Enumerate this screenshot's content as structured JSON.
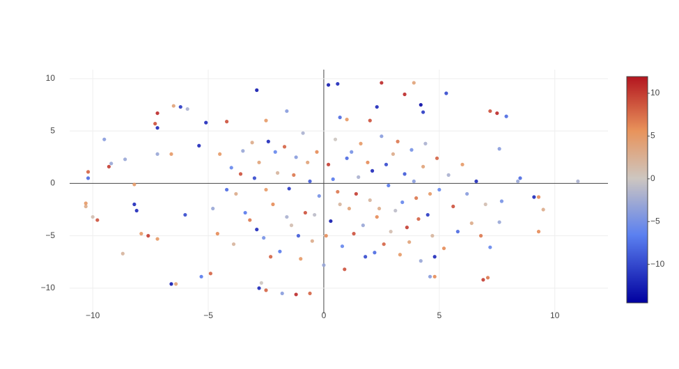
{
  "chart_data": {
    "type": "scatter",
    "x": [
      -10.2,
      -10.2,
      -10.3,
      -10.3,
      -10.0,
      -9.8,
      -9.5,
      -9.2,
      -9.3,
      -8.6,
      -8.2,
      -8.2,
      -8.1,
      -8.7,
      -7.9,
      -7.6,
      -7.2,
      -7.2,
      -7.2,
      -7.3,
      -7.2,
      -6.6,
      -6.5,
      -6.2,
      -5.9,
      -6.6,
      -6.4,
      -5.3,
      -4.9,
      -6.0,
      -5.4,
      -5.1,
      -4.2,
      -2.9,
      -2.5,
      -2.8,
      -2.7,
      -2.5,
      -1.8,
      -1.2,
      -0.6,
      -1.6,
      0.2,
      0.6,
      0.7,
      1.0,
      2.5,
      2.3,
      2.0,
      3.5,
      3.9,
      4.2,
      4.3,
      5.3,
      7.2,
      7.5,
      7.9,
      8.5,
      8.4,
      9.3,
      9.1,
      9.5,
      9.3,
      11.0,
      6.9,
      7.1,
      4.8,
      4.6,
      7.6,
      7.7,
      7.2,
      7.6,
      -4.5,
      -4.0,
      -3.8,
      -3.5,
      -3.2,
      -3.0,
      -2.8,
      -2.6,
      -2.4,
      -2.2,
      -2.0,
      -1.9,
      -1.7,
      -1.5,
      -1.4,
      -1.2,
      -1.0,
      -0.9,
      -0.8,
      -0.6,
      -0.5,
      -0.3,
      -0.2,
      0.0,
      0.2,
      0.3,
      0.5,
      0.6,
      0.8,
      1.0,
      1.1,
      1.3,
      1.5,
      1.6,
      1.8,
      2.0,
      2.1,
      2.3,
      2.5,
      2.6,
      2.8,
      3.0,
      3.1,
      3.3,
      3.5,
      3.6,
      3.8,
      4.0,
      4.2,
      4.3,
      4.5,
      4.7,
      4.9,
      5.0,
      5.2,
      5.4,
      5.6,
      5.8,
      6.0,
      6.2,
      6.4,
      6.6,
      6.8,
      7.0,
      -4.8,
      -4.6,
      -4.2,
      -3.9,
      -3.6,
      -3.4,
      -3.1,
      -2.9,
      -2.5,
      -2.3,
      -2.1,
      -1.6,
      -1.3,
      -1.1,
      -0.7,
      -0.4,
      0.1,
      0.4,
      0.7,
      0.9,
      1.2,
      1.4,
      1.7,
      1.9,
      2.2,
      2.4,
      2.7,
      2.9,
      3.2,
      3.4,
      3.7,
      3.9,
      4.1,
      4.4,
      4.6,
      4.8
    ],
    "y": [
      1.1,
      0.5,
      -2.2,
      -1.9,
      -3.2,
      -3.5,
      4.2,
      1.9,
      1.6,
      2.3,
      -0.1,
      -2.0,
      -2.6,
      -6.7,
      -4.8,
      -5.0,
      -5.3,
      6.7,
      5.3,
      5.7,
      2.8,
      2.8,
      7.4,
      7.3,
      7.1,
      -9.6,
      -9.6,
      -8.9,
      -8.6,
      -3.0,
      3.6,
      5.8,
      5.9,
      8.9,
      6.0,
      -10.0,
      -9.5,
      -10.2,
      -10.5,
      -10.6,
      -10.5,
      6.9,
      9.4,
      9.5,
      6.3,
      6.1,
      9.6,
      7.3,
      6.0,
      8.5,
      9.6,
      7.5,
      6.8,
      8.6,
      6.9,
      6.7,
      6.4,
      0.5,
      0.2,
      -1.3,
      -1.3,
      -2.5,
      -4.6,
      0.2,
      -9.2,
      -9.0,
      -8.9,
      -8.9,
      -3.7,
      -1.7,
      -6.1,
      3.3,
      2.8,
      1.5,
      -1.0,
      3.1,
      -3.5,
      0.5,
      2.0,
      -5.2,
      4.0,
      -2.0,
      1.0,
      -6.5,
      3.5,
      -0.5,
      -4.0,
      2.5,
      -7.2,
      4.8,
      -2.8,
      0.2,
      -5.5,
      3.0,
      -1.2,
      -7.8,
      1.8,
      -3.6,
      4.2,
      -0.8,
      -6.0,
      2.4,
      -2.4,
      -4.8,
      0.6,
      3.8,
      -7.0,
      -1.6,
      1.2,
      -3.2,
      4.5,
      -5.8,
      -0.2,
      2.8,
      -2.6,
      -6.8,
      0.9,
      -4.2,
      3.2,
      -1.4,
      -7.4,
      1.6,
      -3.0,
      -5.0,
      2.4,
      -0.6,
      -6.2,
      0.8,
      -2.2,
      -4.6,
      1.8,
      -1.0,
      -3.8,
      0.2,
      -5.0,
      -2.0,
      -2.4,
      -4.8,
      -0.6,
      -5.8,
      0.9,
      -2.8,
      3.9,
      -4.4,
      -0.6,
      -7.0,
      3.0,
      -3.2,
      0.8,
      -5.0,
      2.0,
      -3.0,
      -5.0,
      0.4,
      -2.0,
      -8.2,
      3.0,
      -1.0,
      -4.0,
      2.0,
      -6.6,
      -2.4,
      1.8,
      -4.6,
      4.0,
      -1.8,
      -5.6,
      0.2,
      -3.4,
      3.8,
      -1.0,
      -7.0
    ],
    "color_values": [
      8,
      -8,
      3,
      5,
      1,
      9,
      -4,
      -3,
      10,
      -3,
      5,
      -12,
      -12,
      2,
      5,
      10,
      5,
      11,
      -12,
      9,
      -3,
      5,
      4,
      -11,
      -2,
      -13,
      4,
      -7,
      8,
      -10,
      -12,
      -12,
      9,
      -13,
      5,
      -12,
      0,
      8,
      -4,
      11,
      8,
      -4,
      -13,
      -12,
      -8,
      5,
      11,
      -12,
      9,
      11,
      4,
      -14,
      -11,
      -10,
      9,
      11,
      -8,
      -8,
      -3,
      6,
      -12,
      3,
      6,
      -2,
      10,
      7,
      6,
      -4,
      -3,
      -5,
      -6,
      -4,
      5,
      -6,
      3,
      -3,
      7,
      -10,
      4,
      -5,
      -12,
      6,
      2,
      -7,
      8,
      -11,
      1,
      -4,
      5,
      -2,
      9,
      -9,
      3,
      6,
      -5,
      -3,
      10,
      -13,
      0,
      7,
      -6,
      -8,
      4,
      9,
      -2,
      5,
      -10,
      2,
      -12,
      6,
      -4,
      8,
      -7,
      3,
      -1,
      5,
      -9,
      10,
      -5,
      7,
      -3,
      4,
      -11,
      2,
      8,
      -6,
      6,
      -2,
      9,
      -8,
      5,
      -4,
      3,
      -12,
      7,
      1,
      -3,
      6,
      -8,
      2,
      9,
      -7,
      3,
      -12,
      5,
      8,
      -6,
      -2,
      7,
      -9,
      4,
      -1,
      6,
      -7,
      2,
      9,
      -5,
      10,
      -3,
      6,
      -8,
      3,
      -10,
      1,
      7,
      -6,
      4,
      -4,
      8,
      -2,
      5,
      -12
    ],
    "xlim": [
      -11.0,
      12.3
    ],
    "ylim": [
      -12.4,
      10.86
    ],
    "clim": [
      -14.5,
      11.95
    ],
    "xticks": [
      {
        "value": -10,
        "label": "−10"
      },
      {
        "value": -5,
        "label": "−5"
      },
      0,
      5,
      10
    ],
    "yticks": [
      {
        "value": -10,
        "label": "−10"
      },
      {
        "value": -5,
        "label": "−5"
      },
      0,
      5,
      10
    ],
    "colorbar_ticks": [
      {
        "value": -10,
        "label": "−10"
      },
      {
        "value": -5,
        "label": "−5"
      },
      0,
      5,
      10
    ],
    "colorscale": [
      [
        0,
        "#00009f"
      ],
      [
        0.3,
        "#5b80f0"
      ],
      [
        0.55,
        "#cdc6c0"
      ],
      [
        0.76,
        "#e8935b"
      ],
      [
        1,
        "#b3151f"
      ]
    ],
    "grid": true
  }
}
